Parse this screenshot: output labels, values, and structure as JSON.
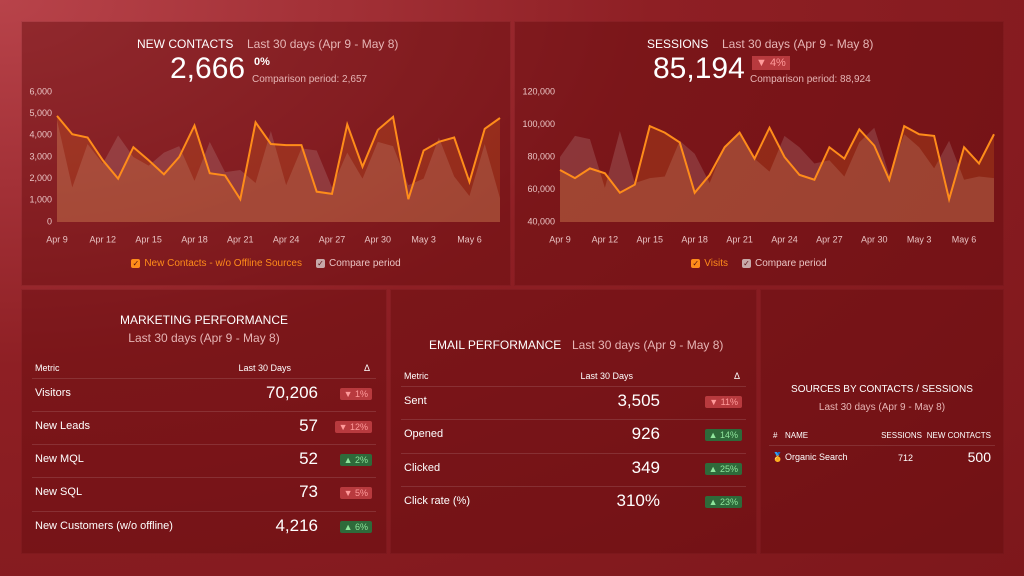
{
  "panels": [
    {
      "title": "NEW CONTACTS",
      "period": "Last 30 days (Apr 9 - May 8)",
      "value": "2,666",
      "change": "0%",
      "comparison": "Comparison period: 2,657",
      "chart": {
        "type": "line",
        "categories": [
          "Apr 9",
          null,
          null,
          "Apr 12",
          null,
          null,
          "Apr 15",
          null,
          null,
          "Apr 18",
          null,
          null,
          "Apr 21",
          null,
          null,
          "Apr 24",
          null,
          null,
          "Apr 27",
          null,
          null,
          "Apr 30",
          null,
          null,
          "May 3",
          null,
          null,
          "May 6",
          null,
          null
        ],
        "ylim": [
          0,
          6000
        ],
        "yticks": [
          0,
          {
            "value": 1000,
            "label": "1,000"
          },
          {
            "value": 2000,
            "label": "2,000"
          },
          {
            "value": 3000,
            "label": "3,000"
          },
          {
            "value": 4000,
            "label": "4,000"
          },
          {
            "value": 5000,
            "label": "5,000"
          },
          {
            "value": 6000,
            "label": "6,000"
          }
        ],
        "series": [
          {
            "name": "New Contacts - w/o Offline Sources",
            "color": "#ff8c1a",
            "values": [
              4900,
              4050,
              3900,
              2850,
              2000,
              3450,
              2850,
              2200,
              3000,
              4450,
              2250,
              2150,
              1050,
              4600,
              3600,
              3550,
              3550,
              1400,
              1300,
              4500,
              2550,
              4250,
              4850,
              1050,
              3300,
              3700,
              3900,
              1850,
              4300,
              4800
            ]
          },
          {
            "name": "Compare period",
            "color": "#c7a9a9",
            "values": [
              4700,
              1600,
              3600,
              2700,
              4000,
              3000,
              2600,
              3200,
              3500,
              1900,
              3700,
              2300,
              2400,
              1800,
              4200,
              1700,
              3400,
              3300,
              1600,
              3200,
              2000,
              3700,
              3500,
              1700,
              2000,
              3900,
              2100,
              1200,
              3600,
              1100
            ]
          }
        ]
      }
    },
    {
      "title": "SESSIONS",
      "period": "Last 30 days (Apr 9 - May 8)",
      "value": "85,194",
      "change": "▼ 4%",
      "comparison": "Comparison period: 88,924",
      "chart": {
        "type": "line",
        "categories": [
          "Apr 9",
          null,
          null,
          "Apr 12",
          null,
          null,
          "Apr 15",
          null,
          null,
          "Apr 18",
          null,
          null,
          "Apr 21",
          null,
          null,
          "Apr 24",
          null,
          null,
          "Apr 27",
          null,
          null,
          "Apr 30",
          null,
          null,
          "May 3",
          null,
          null,
          "May 6",
          null,
          null
        ],
        "ylim": [
          40000,
          120000
        ],
        "yticks": [
          {
            "value": 40000,
            "label": "40,000"
          },
          {
            "value": 60000,
            "label": "60,000"
          },
          {
            "value": 80000,
            "label": "80,000"
          },
          {
            "value": 100000,
            "label": "100,000"
          },
          {
            "value": 120000,
            "label": "120,000"
          }
        ],
        "series": [
          {
            "name": "Visits",
            "color": "#ff8c1a",
            "values": [
              72000,
              67000,
              73000,
              70000,
              58000,
              63000,
              99000,
              95000,
              89000,
              58000,
              69000,
              86000,
              95000,
              79000,
              98000,
              80000,
              69000,
              66000,
              86000,
              79000,
              97000,
              87000,
              66000,
              99000,
              94000,
              93000,
              54000,
              86000,
              76000,
              94000
            ]
          },
          {
            "name": "Compare period",
            "color": "#c7a9a9",
            "values": [
              80000,
              93000,
              91000,
              61000,
              96000,
              64000,
              67000,
              68000,
              90000,
              82000,
              64000,
              87000,
              94000,
              79000,
              71000,
              93000,
              86000,
              76000,
              78000,
              68000,
              89000,
              98000,
              69000,
              94000,
              86000,
              73000,
              90000,
              66000,
              68000,
              67000
            ]
          }
        ]
      }
    }
  ],
  "tables": [
    {
      "title": "MARKETING PERFORMANCE",
      "period": "Last 30 days (Apr 9 - May 8)",
      "columns": [
        "Metric",
        "Last 30 Days",
        "Δ"
      ],
      "rows": [
        [
          "Visitors",
          "70,206",
          "▼ 1%"
        ],
        [
          "New Leads",
          "57",
          "▼ 12%"
        ],
        [
          "New MQL",
          "52",
          "▲ 2%"
        ],
        [
          "New SQL",
          "73",
          "▼ 5%"
        ],
        [
          "New Customers (w/o offline)",
          "4,216",
          "▲ 6%"
        ]
      ]
    },
    {
      "title": "EMAIL PERFORMANCE",
      "period": "Last 30 days (Apr 9 - May 8)",
      "columns": [
        "Metric",
        "Last 30 Days",
        "Δ"
      ],
      "rows": [
        [
          "Sent",
          "3,505",
          "▼ 11%"
        ],
        [
          "Opened",
          "926",
          "▲ 14%"
        ],
        [
          "Clicked",
          "349",
          "▲ 25%"
        ],
        [
          "Click rate (%)",
          "310%",
          "▲ 23%"
        ]
      ]
    }
  ],
  "sources": {
    "title": "SOURCES BY CONTACTS / SESSIONS",
    "period": "Last 30 days (Apr 9 - May 8)",
    "columns": [
      "#",
      "NAME",
      "SESSIONS",
      "NEW CONTACTS"
    ],
    "rows": [
      [
        "Organic Search",
        "712",
        "500"
      ]
    ]
  }
}
